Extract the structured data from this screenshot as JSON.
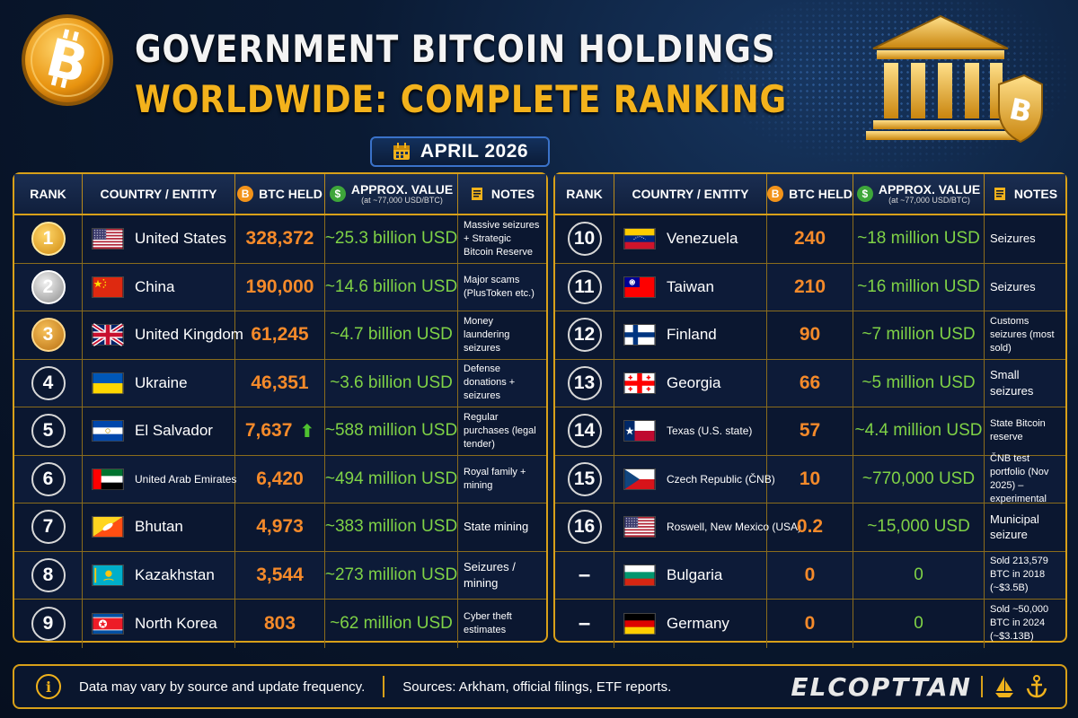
{
  "title_line1": "GOVERNMENT BITCOIN HOLDINGS",
  "title_line2": "WORLDWIDE: COMPLETE RANKING",
  "date": "APRIL 2026",
  "colors": {
    "gold": "#d8a019",
    "btc_orange": "#f58a2a",
    "value_green": "#7fd246",
    "background": "#081428"
  },
  "columns": {
    "rank": "RANK",
    "country": "COUNTRY / ENTITY",
    "btc": "BTC HELD",
    "value": "APPROX. VALUE",
    "value_sub": "(at ~77,000 USD/BTC)",
    "notes": "NOTES"
  },
  "chart_data": {
    "type": "table",
    "title": "GOVERNMENT BITCOIN HOLDINGS WORLDWIDE: COMPLETE RANKING",
    "left_rows": [
      {
        "rank": "1",
        "country": "United States",
        "flag": "us",
        "btc": "328,372",
        "value": "~25.3 billion USD",
        "notes": "Massive seizures + Strategic Bitcoin Reserve",
        "medal": "gold"
      },
      {
        "rank": "2",
        "country": "China",
        "flag": "cn",
        "btc": "190,000",
        "value": "~14.6 billion USD",
        "notes": "Major scams (PlusToken etc.)",
        "medal": "silver"
      },
      {
        "rank": "3",
        "country": "United Kingdom",
        "flag": "gb",
        "btc": "61,245",
        "value": "~4.7 billion USD",
        "notes": "Money laundering seizures",
        "medal": "bronze"
      },
      {
        "rank": "4",
        "country": "Ukraine",
        "flag": "ua",
        "btc": "46,351",
        "value": "~3.6 billion USD",
        "notes": "Defense donations + seizures",
        "medal": ""
      },
      {
        "rank": "5",
        "country": "El Salvador",
        "flag": "sv",
        "btc": "7,637",
        "value": "~588 million USD",
        "notes": "Regular purchases (legal tender)",
        "medal": "",
        "trend": "up"
      },
      {
        "rank": "6",
        "country": "United Arab Emirates",
        "flag": "ae",
        "btc": "6,420",
        "value": "~494 million USD",
        "notes": "Royal family + mining",
        "medal": ""
      },
      {
        "rank": "7",
        "country": "Bhutan",
        "flag": "bt",
        "btc": "4,973",
        "value": "~383 million USD",
        "notes": "State mining",
        "medal": ""
      },
      {
        "rank": "8",
        "country": "Kazakhstan",
        "flag": "kz",
        "btc": "3,544",
        "value": "~273 million USD",
        "notes": "Seizures / mining",
        "medal": ""
      },
      {
        "rank": "9",
        "country": "North Korea",
        "flag": "kp",
        "btc": "803",
        "value": "~62 million USD",
        "notes": "Cyber theft estimates",
        "medal": ""
      }
    ],
    "right_rows": [
      {
        "rank": "10",
        "country": "Venezuela",
        "flag": "ve",
        "btc": "240",
        "value": "~18 million USD",
        "notes": "Seizures"
      },
      {
        "rank": "11",
        "country": "Taiwan",
        "flag": "tw",
        "btc": "210",
        "value": "~16 million USD",
        "notes": "Seizures"
      },
      {
        "rank": "12",
        "country": "Finland",
        "flag": "fi",
        "btc": "90",
        "value": "~7 million USD",
        "notes": "Customs seizures (most sold)"
      },
      {
        "rank": "13",
        "country": "Georgia",
        "flag": "ge",
        "btc": "66",
        "value": "~5 million USD",
        "notes": "Small seizures"
      },
      {
        "rank": "14",
        "country": "Texas (U.S. state)",
        "flag": "tx",
        "btc": "57",
        "value": "~4.4 million USD",
        "notes": "State Bitcoin reserve"
      },
      {
        "rank": "15",
        "country": "Czech Republic (ČNB)",
        "flag": "cz",
        "btc": "10",
        "value": "~770,000 USD",
        "notes": "ČNB test portfolio (Nov 2025) –experimental"
      },
      {
        "rank": "16",
        "country": "Roswell, New Mexico (USA)",
        "flag": "us",
        "btc": "0.2",
        "value": "~15,000 USD",
        "notes": "Municipal seizure"
      },
      {
        "rank": "–",
        "country": "Bulgaria",
        "flag": "bg",
        "btc": "0",
        "value": "0",
        "notes": "Sold 213,579 BTC in 2018 (~$3.5B)"
      },
      {
        "rank": "–",
        "country": "Germany",
        "flag": "de",
        "btc": "0",
        "value": "0",
        "notes": "Sold ~50,000 BTC in 2024 (~$3.13B)"
      }
    ]
  },
  "footer": {
    "disclaimer": "Data may vary by source and update frequency.",
    "sources": "Sources: Arkham, official filings, ETF reports.",
    "brand": "ELCOPTTAN"
  }
}
